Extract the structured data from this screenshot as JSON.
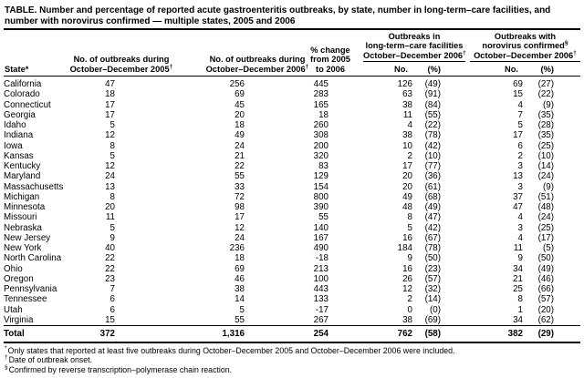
{
  "table": {
    "title": "TABLE. Number and percentage of reported acute gastroenteritis outbreaks, by state, number in long-term–care facilities, and number with norovirus confirmed — multiple states, 2005 and 2006",
    "header": {
      "state": {
        "label": "State",
        "note": "*"
      },
      "col2005": {
        "line1": "No. of outbreaks during",
        "line2": "October–December 2005",
        "note": "†"
      },
      "col2006": {
        "line1": "No. of outbreaks during",
        "line2": "October–December 2006",
        "note": "†"
      },
      "pct_change": {
        "line1": "% change",
        "line2": "from 2005",
        "line3": "to 2006"
      },
      "group_ltcf": {
        "line1": "Outbreaks in",
        "line2": "long-term–care facilities",
        "line3": "October–December 2006",
        "note": "†"
      },
      "group_noro": {
        "line1": "Outbreaks with",
        "line2": "norovirus confirmed",
        "note1": "§",
        "line3": "October–December 2006",
        "note2": "†"
      },
      "sub_no": "No.",
      "sub_pct": "(%)"
    },
    "rows": [
      {
        "state": "California",
        "n2005": "47",
        "n2006": "256",
        "pct": "445",
        "ltcf_no": "126",
        "ltcf_pct": "(49)",
        "noro_no": "69",
        "noro_pct": "(27)"
      },
      {
        "state": "Colorado",
        "n2005": "18",
        "n2006": "69",
        "pct": "283",
        "ltcf_no": "63",
        "ltcf_pct": "(91)",
        "noro_no": "15",
        "noro_pct": "(22)"
      },
      {
        "state": "Connecticut",
        "n2005": "17",
        "n2006": "45",
        "pct": "165",
        "ltcf_no": "38",
        "ltcf_pct": "(84)",
        "noro_no": "4",
        "noro_pct": "(9)"
      },
      {
        "state": "Georgia",
        "n2005": "17",
        "n2006": "20",
        "pct": "18",
        "ltcf_no": "11",
        "ltcf_pct": "(55)",
        "noro_no": "7",
        "noro_pct": "(35)"
      },
      {
        "state": "Idaho",
        "n2005": "5",
        "n2006": "18",
        "pct": "260",
        "ltcf_no": "4",
        "ltcf_pct": "(22)",
        "noro_no": "5",
        "noro_pct": "(28)"
      },
      {
        "state": "Indiana",
        "n2005": "12",
        "n2006": "49",
        "pct": "308",
        "ltcf_no": "38",
        "ltcf_pct": "(78)",
        "noro_no": "17",
        "noro_pct": "(35)"
      },
      {
        "state": "Iowa",
        "n2005": "8",
        "n2006": "24",
        "pct": "200",
        "ltcf_no": "10",
        "ltcf_pct": "(42)",
        "noro_no": "6",
        "noro_pct": "(25)"
      },
      {
        "state": "Kansas",
        "n2005": "5",
        "n2006": "21",
        "pct": "320",
        "ltcf_no": "2",
        "ltcf_pct": "(10)",
        "noro_no": "2",
        "noro_pct": "(10)"
      },
      {
        "state": "Kentucky",
        "n2005": "12",
        "n2006": "22",
        "pct": "83",
        "ltcf_no": "17",
        "ltcf_pct": "(77)",
        "noro_no": "3",
        "noro_pct": "(14)"
      },
      {
        "state": "Maryland",
        "n2005": "24",
        "n2006": "55",
        "pct": "129",
        "ltcf_no": "20",
        "ltcf_pct": "(36)",
        "noro_no": "13",
        "noro_pct": "(24)"
      },
      {
        "state": "Massachusetts",
        "n2005": "13",
        "n2006": "33",
        "pct": "154",
        "ltcf_no": "20",
        "ltcf_pct": "(61)",
        "noro_no": "3",
        "noro_pct": "(9)"
      },
      {
        "state": "Michigan",
        "n2005": "8",
        "n2006": "72",
        "pct": "800",
        "ltcf_no": "49",
        "ltcf_pct": "(68)",
        "noro_no": "37",
        "noro_pct": "(51)"
      },
      {
        "state": "Minnesota",
        "n2005": "20",
        "n2006": "98",
        "pct": "390",
        "ltcf_no": "48",
        "ltcf_pct": "(49)",
        "noro_no": "47",
        "noro_pct": "(48)"
      },
      {
        "state": "Missouri",
        "n2005": "11",
        "n2006": "17",
        "pct": "55",
        "ltcf_no": "8",
        "ltcf_pct": "(47)",
        "noro_no": "4",
        "noro_pct": "(24)"
      },
      {
        "state": "Nebraska",
        "n2005": "5",
        "n2006": "12",
        "pct": "140",
        "ltcf_no": "5",
        "ltcf_pct": "(42)",
        "noro_no": "3",
        "noro_pct": "(25)"
      },
      {
        "state": "New Jersey",
        "n2005": "9",
        "n2006": "24",
        "pct": "167",
        "ltcf_no": "16",
        "ltcf_pct": "(67)",
        "noro_no": "4",
        "noro_pct": "(17)"
      },
      {
        "state": "New York",
        "n2005": "40",
        "n2006": "236",
        "pct": "490",
        "ltcf_no": "184",
        "ltcf_pct": "(78)",
        "noro_no": "11",
        "noro_pct": "(5)"
      },
      {
        "state": "North Carolina",
        "n2005": "22",
        "n2006": "18",
        "pct": "-18",
        "ltcf_no": "9",
        "ltcf_pct": "(50)",
        "noro_no": "9",
        "noro_pct": "(50)"
      },
      {
        "state": "Ohio",
        "n2005": "22",
        "n2006": "69",
        "pct": "213",
        "ltcf_no": "16",
        "ltcf_pct": "(23)",
        "noro_no": "34",
        "noro_pct": "(49)"
      },
      {
        "state": "Oregon",
        "n2005": "23",
        "n2006": "46",
        "pct": "100",
        "ltcf_no": "26",
        "ltcf_pct": "(57)",
        "noro_no": "21",
        "noro_pct": "(46)"
      },
      {
        "state": "Pennsylvania",
        "n2005": "7",
        "n2006": "38",
        "pct": "443",
        "ltcf_no": "12",
        "ltcf_pct": "(32)",
        "noro_no": "25",
        "noro_pct": "(66)"
      },
      {
        "state": "Tennessee",
        "n2005": "6",
        "n2006": "14",
        "pct": "133",
        "ltcf_no": "2",
        "ltcf_pct": "(14)",
        "noro_no": "8",
        "noro_pct": "(57)"
      },
      {
        "state": "Utah",
        "n2005": "6",
        "n2006": "5",
        "pct": "-17",
        "ltcf_no": "0",
        "ltcf_pct": "(0)",
        "noro_no": "1",
        "noro_pct": "(20)"
      },
      {
        "state": "Virginia",
        "n2005": "15",
        "n2006": "55",
        "pct": "267",
        "ltcf_no": "38",
        "ltcf_pct": "(69)",
        "noro_no": "34",
        "noro_pct": "(62)"
      }
    ],
    "total": {
      "state": "Total",
      "n2005": "372",
      "n2006": "1,316",
      "pct": "254",
      "ltcf_no": "762",
      "ltcf_pct": "(58)",
      "noro_no": "382",
      "noro_pct": "(29)"
    },
    "footnotes": [
      {
        "symbol": "*",
        "text": "Only states that reported at least five outbreaks during October–December 2005 and October–December 2006 were included."
      },
      {
        "symbol": "†",
        "text": "Date of outbreak onset."
      },
      {
        "symbol": "§",
        "text": "Confirmed by reverse transcription–polymerase chain reaction."
      }
    ],
    "colors": {
      "text": "#000000",
      "background": "#ffffff",
      "rule": "#000000"
    }
  }
}
